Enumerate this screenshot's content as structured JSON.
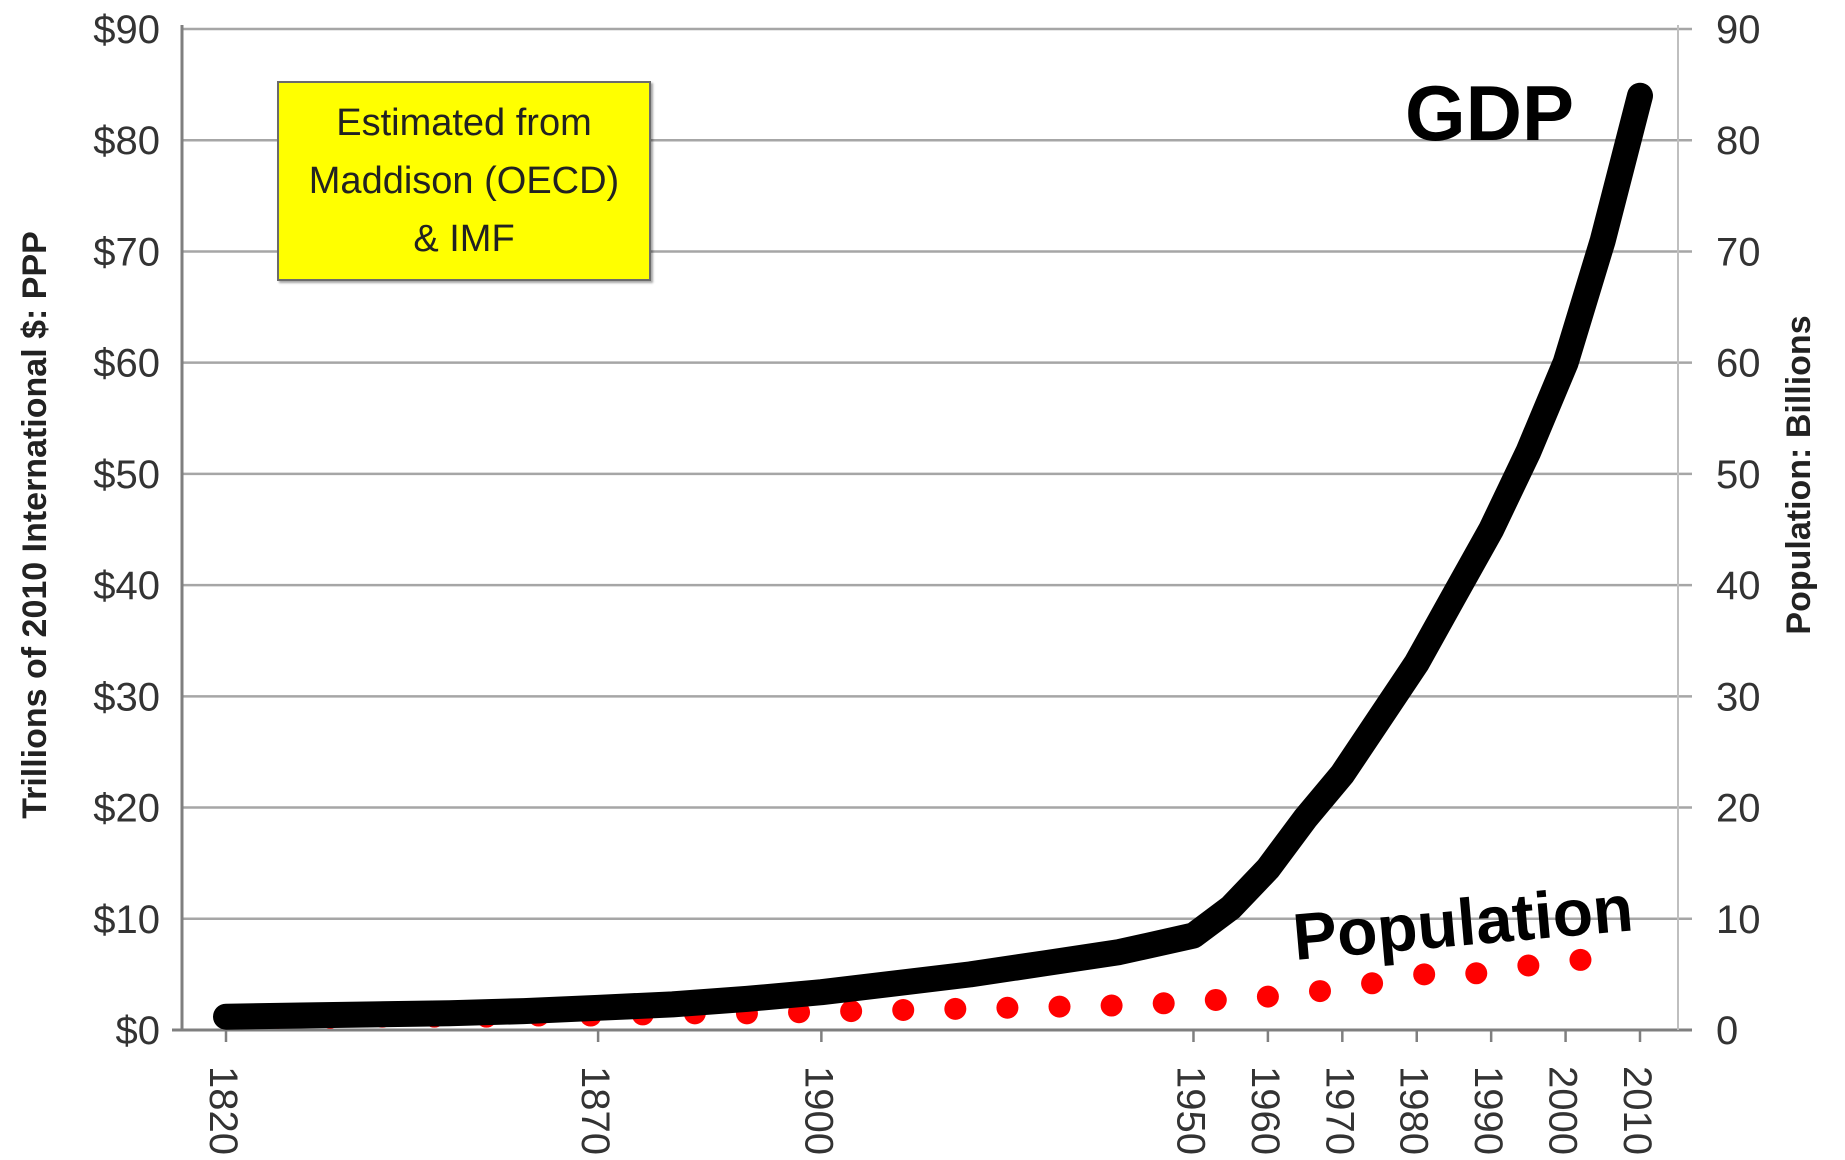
{
  "chart_data": {
    "type": "line",
    "x": [
      1820,
      1870,
      1900,
      1950,
      1960,
      1970,
      1980,
      1990,
      2000,
      2010
    ],
    "x_tick_labels": [
      "1820",
      "1870",
      "1900",
      "1950",
      "1960",
      "1970",
      "1980",
      "1990",
      "2000",
      "2010"
    ],
    "xlim": [
      1820,
      2010
    ],
    "y_left": {
      "label": "Trillions of 2010 International $: PPP",
      "ylim": [
        0,
        90
      ],
      "tick_labels": [
        "$0",
        "$10",
        "$20",
        "$30",
        "$40",
        "$50",
        "$60",
        "$70",
        "$80",
        "$90"
      ]
    },
    "y_right": {
      "label": "Population: Billions",
      "ylim": [
        0,
        90
      ],
      "tick_labels": [
        "0",
        "10",
        "20",
        "30",
        "40",
        "50",
        "60",
        "70",
        "80",
        "90"
      ]
    },
    "grid": true,
    "series": [
      {
        "name": "GDP",
        "axis": "left",
        "style": "thick solid line",
        "color": "#000000",
        "points": [
          [
            1820,
            1.2
          ],
          [
            1830,
            1.3
          ],
          [
            1840,
            1.4
          ],
          [
            1850,
            1.5
          ],
          [
            1860,
            1.7
          ],
          [
            1870,
            2.0
          ],
          [
            1880,
            2.3
          ],
          [
            1890,
            2.8
          ],
          [
            1900,
            3.4
          ],
          [
            1910,
            4.2
          ],
          [
            1920,
            5.0
          ],
          [
            1930,
            6.0
          ],
          [
            1940,
            7.0
          ],
          [
            1950,
            8.5
          ],
          [
            1955,
            11.0
          ],
          [
            1960,
            14.5
          ],
          [
            1965,
            19.0
          ],
          [
            1970,
            23.0
          ],
          [
            1975,
            28.0
          ],
          [
            1980,
            33.0
          ],
          [
            1985,
            39.0
          ],
          [
            1990,
            45.0
          ],
          [
            1995,
            52.0
          ],
          [
            2000,
            60.0
          ],
          [
            2005,
            71.0
          ],
          [
            2010,
            84.0
          ]
        ]
      },
      {
        "name": "Population",
        "axis": "right",
        "style": "dotted",
        "color": "#ff0000",
        "points": [
          [
            1820,
            1.1
          ],
          [
            1827,
            1.1
          ],
          [
            1834,
            1.1
          ],
          [
            1841,
            1.2
          ],
          [
            1848,
            1.2
          ],
          [
            1855,
            1.2
          ],
          [
            1862,
            1.3
          ],
          [
            1869,
            1.3
          ],
          [
            1876,
            1.4
          ],
          [
            1883,
            1.5
          ],
          [
            1890,
            1.5
          ],
          [
            1897,
            1.6
          ],
          [
            1904,
            1.7
          ],
          [
            1911,
            1.8
          ],
          [
            1918,
            1.9
          ],
          [
            1925,
            2.0
          ],
          [
            1932,
            2.1
          ],
          [
            1939,
            2.2
          ],
          [
            1946,
            2.4
          ],
          [
            1953,
            2.7
          ],
          [
            1960,
            3.0
          ],
          [
            1967,
            3.5
          ],
          [
            1974,
            4.2
          ],
          [
            1981,
            5.0
          ],
          [
            1988,
            5.1
          ],
          [
            1995,
            5.8
          ],
          [
            2002,
            6.3
          ]
        ]
      }
    ],
    "annotations": [
      {
        "text": "GDP",
        "near_series": "GDP"
      },
      {
        "text": "Population",
        "near_series": "Population"
      }
    ],
    "note_box": {
      "text": "Estimated from\nMaddison (OECD)\n& IMF",
      "background": "#ffff00"
    }
  }
}
